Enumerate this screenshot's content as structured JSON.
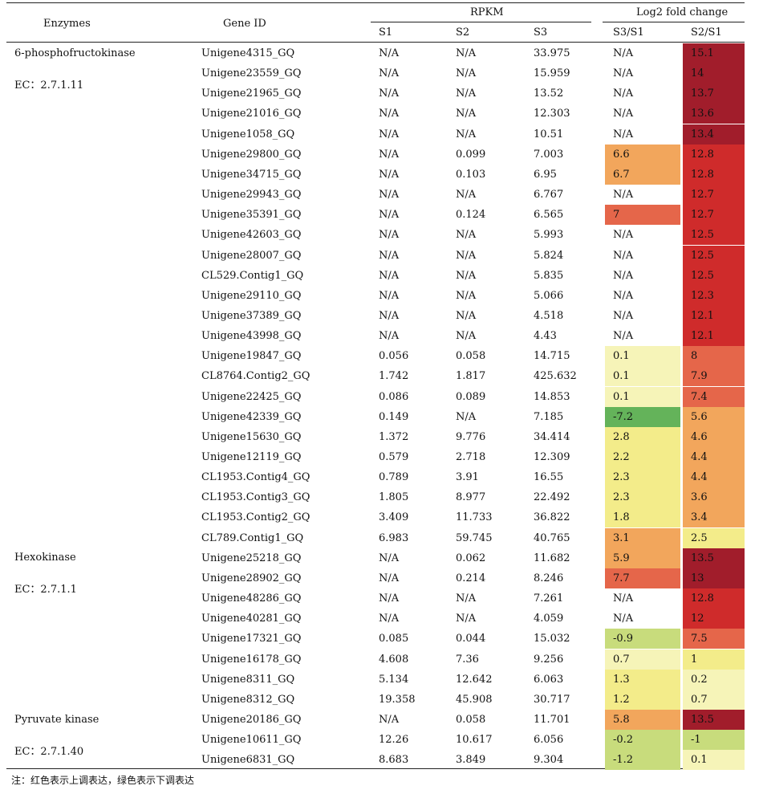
{
  "header": {
    "enzymes": "Enzymes",
    "gene_id": "Gene ID",
    "rpkm": "RPKM",
    "log2": "Log2 fold change",
    "s1": "S1",
    "s2": "S2",
    "s3": "S3",
    "s3s1": "S3/S1",
    "s2s1": "S2/S1"
  },
  "enzyme_groups": [
    {
      "name": "6-phosphofructokinase",
      "ec": "EC：2.7.1.11"
    },
    {
      "name": "Hexokinase",
      "ec": "EC：2.7.1.1"
    },
    {
      "name": "Pyruvate kinase",
      "ec": "EC：2.7.1.40"
    }
  ],
  "colors": {
    "darkred": "#a11d2b",
    "red": "#cf2b2b",
    "redorange": "#e5664a",
    "orange": "#f2a65c",
    "yellow": "#f3ec8a",
    "paleyellow": "#f6f4b8",
    "lightgreen": "#c8dc7c",
    "green": "#64b35a",
    "none": "transparent"
  },
  "rows": [
    {
      "gene": "Unigene4315_GQ",
      "s1": "N/A",
      "s2": "N/A",
      "s3": "33.975",
      "s3s1": "N/A",
      "s2s1": "15.1",
      "c31": "none",
      "c21": "darkred"
    },
    {
      "gene": "Unigene23559_GQ",
      "s1": "N/A",
      "s2": "N/A",
      "s3": "15.959",
      "s3s1": "N/A",
      "s2s1": "14",
      "c31": "none",
      "c21": "darkred"
    },
    {
      "gene": "Unigene21965_GQ",
      "s1": "N/A",
      "s2": "N/A",
      "s3": "13.52",
      "s3s1": "N/A",
      "s2s1": "13.7",
      "c31": "none",
      "c21": "darkred"
    },
    {
      "gene": "Unigene21016_GQ",
      "s1": "N/A",
      "s2": "N/A",
      "s3": "12.303",
      "s3s1": "N/A",
      "s2s1": "13.6",
      "c31": "none",
      "c21": "darkred"
    },
    {
      "gene": "Unigene1058_GQ",
      "s1": "N/A",
      "s2": "N/A",
      "s3": "10.51",
      "s3s1": "N/A",
      "s2s1": "13.4",
      "c31": "none",
      "c21": "darkred"
    },
    {
      "gene": "Unigene29800_GQ",
      "s1": "N/A",
      "s2": "0.099",
      "s3": "7.003",
      "s3s1": "6.6",
      "s2s1": "12.8",
      "c31": "orange",
      "c21": "red"
    },
    {
      "gene": "Unigene34715_GQ",
      "s1": "N/A",
      "s2": "0.103",
      "s3": "6.95",
      "s3s1": "6.7",
      "s2s1": "12.8",
      "c31": "orange",
      "c21": "red"
    },
    {
      "gene": "Unigene29943_GQ",
      "s1": "N/A",
      "s2": "N/A",
      "s3": "6.767",
      "s3s1": "N/A",
      "s2s1": "12.7",
      "c31": "none",
      "c21": "red"
    },
    {
      "gene": "Unigene35391_GQ",
      "s1": "N/A",
      "s2": "0.124",
      "s3": "6.565",
      "s3s1": "7",
      "s2s1": "12.7",
      "c31": "redorange",
      "c21": "red"
    },
    {
      "gene": "Unigene42603_GQ",
      "s1": "N/A",
      "s2": "N/A",
      "s3": "5.993",
      "s3s1": "N/A",
      "s2s1": "12.5",
      "c31": "none",
      "c21": "red"
    },
    {
      "gene": "Unigene28007_GQ",
      "s1": "N/A",
      "s2": "N/A",
      "s3": "5.824",
      "s3s1": "N/A",
      "s2s1": "12.5",
      "c31": "none",
      "c21": "red"
    },
    {
      "gene": "CL529.Contig1_GQ",
      "s1": "N/A",
      "s2": "N/A",
      "s3": "5.835",
      "s3s1": "N/A",
      "s2s1": "12.5",
      "c31": "none",
      "c21": "red"
    },
    {
      "gene": "Unigene29110_GQ",
      "s1": "N/A",
      "s2": "N/A",
      "s3": "5.066",
      "s3s1": "N/A",
      "s2s1": "12.3",
      "c31": "none",
      "c21": "red"
    },
    {
      "gene": "Unigene37389_GQ",
      "s1": "N/A",
      "s2": "N/A",
      "s3": "4.518",
      "s3s1": "N/A",
      "s2s1": "12.1",
      "c31": "none",
      "c21": "red"
    },
    {
      "gene": "Unigene43998_GQ",
      "s1": "N/A",
      "s2": "N/A",
      "s3": "4.43",
      "s3s1": "N/A",
      "s2s1": "12.1",
      "c31": "none",
      "c21": "red"
    },
    {
      "gene": "Unigene19847_GQ",
      "s1": "0.056",
      "s2": "0.058",
      "s3": "14.715",
      "s3s1": "0.1",
      "s2s1": "8",
      "c31": "paleyellow",
      "c21": "redorange"
    },
    {
      "gene": "CL8764.Contig2_GQ",
      "s1": "1.742",
      "s2": "1.817",
      "s3": "425.632",
      "s3s1": "0.1",
      "s2s1": "7.9",
      "c31": "paleyellow",
      "c21": "redorange"
    },
    {
      "gene": "Unigene22425_GQ",
      "s1": "0.086",
      "s2": "0.089",
      "s3": "14.853",
      "s3s1": "0.1",
      "s2s1": "7.4",
      "c31": "paleyellow",
      "c21": "redorange"
    },
    {
      "gene": "Unigene42339_GQ",
      "s1": "0.149",
      "s2": "N/A",
      "s3": "7.185",
      "s3s1": "-7.2",
      "s2s1": "5.6",
      "c31": "green",
      "c21": "orange"
    },
    {
      "gene": "Unigene15630_GQ",
      "s1": "1.372",
      "s2": "9.776",
      "s3": "34.414",
      "s3s1": "2.8",
      "s2s1": "4.6",
      "c31": "yellow",
      "c21": "orange"
    },
    {
      "gene": "Unigene12119_GQ",
      "s1": "0.579",
      "s2": "2.718",
      "s3": "12.309",
      "s3s1": "2.2",
      "s2s1": "4.4",
      "c31": "yellow",
      "c21": "orange"
    },
    {
      "gene": "CL1953.Contig4_GQ",
      "s1": "0.789",
      "s2": "3.91",
      "s3": "16.55",
      "s3s1": "2.3",
      "s2s1": "4.4",
      "c31": "yellow",
      "c21": "orange"
    },
    {
      "gene": "CL1953.Contig3_GQ",
      "s1": "1.805",
      "s2": "8.977",
      "s3": "22.492",
      "s3s1": "2.3",
      "s2s1": "3.6",
      "c31": "yellow",
      "c21": "orange"
    },
    {
      "gene": "CL1953.Contig2_GQ",
      "s1": "3.409",
      "s2": "11.733",
      "s3": "36.822",
      "s3s1": "1.8",
      "s2s1": "3.4",
      "c31": "yellow",
      "c21": "orange"
    },
    {
      "gene": "CL789.Contig1_GQ",
      "s1": "6.983",
      "s2": "59.745",
      "s3": "40.765",
      "s3s1": "3.1",
      "s2s1": "2.5",
      "c31": "orange",
      "c21": "yellow"
    },
    {
      "gene": "Unigene25218_GQ",
      "s1": "N/A",
      "s2": "0.062",
      "s3": "11.682",
      "s3s1": "5.9",
      "s2s1": "13.5",
      "c31": "orange",
      "c21": "darkred"
    },
    {
      "gene": "Unigene28902_GQ",
      "s1": "N/A",
      "s2": "0.214",
      "s3": "8.246",
      "s3s1": "7.7",
      "s2s1": "13",
      "c31": "redorange",
      "c21": "darkred"
    },
    {
      "gene": "Unigene48286_GQ",
      "s1": "N/A",
      "s2": "N/A",
      "s3": "7.261",
      "s3s1": "N/A",
      "s2s1": "12.8",
      "c31": "none",
      "c21": "red"
    },
    {
      "gene": "Unigene40281_GQ",
      "s1": "N/A",
      "s2": "N/A",
      "s3": "4.059",
      "s3s1": "N/A",
      "s2s1": "12",
      "c31": "none",
      "c21": "red"
    },
    {
      "gene": "Unigene17321_GQ",
      "s1": "0.085",
      "s2": "0.044",
      "s3": "15.032",
      "s3s1": "-0.9",
      "s2s1": "7.5",
      "c31": "lightgreen",
      "c21": "redorange"
    },
    {
      "gene": "Unigene16178_GQ",
      "s1": "4.608",
      "s2": "7.36",
      "s3": "9.256",
      "s3s1": "0.7",
      "s2s1": "1",
      "c31": "paleyellow",
      "c21": "yellow"
    },
    {
      "gene": "Unigene8311_GQ",
      "s1": "5.134",
      "s2": "12.642",
      "s3": "6.063",
      "s3s1": "1.3",
      "s2s1": "0.2",
      "c31": "yellow",
      "c21": "paleyellow"
    },
    {
      "gene": "Unigene8312_GQ",
      "s1": "19.358",
      "s2": "45.908",
      "s3": "30.717",
      "s3s1": "1.2",
      "s2s1": "0.7",
      "c31": "yellow",
      "c21": "paleyellow"
    },
    {
      "gene": "Unigene20186_GQ",
      "s1": "N/A",
      "s2": "0.058",
      "s3": "11.701",
      "s3s1": "5.8",
      "s2s1": "13.5",
      "c31": "orange",
      "c21": "darkred"
    },
    {
      "gene": "Unigene10611_GQ",
      "s1": "12.26",
      "s2": "10.617",
      "s3": "6.056",
      "s3s1": "-0.2",
      "s2s1": "-1",
      "c31": "lightgreen",
      "c21": "lightgreen"
    },
    {
      "gene": "Unigene6831_GQ",
      "s1": "8.683",
      "s2": "3.849",
      "s3": "9.304",
      "s3s1": "-1.2",
      "s2s1": "0.1",
      "c31": "lightgreen",
      "c21": "paleyellow"
    }
  ],
  "footnote": "注：红色表示上调表达，绿色表示下调表达"
}
